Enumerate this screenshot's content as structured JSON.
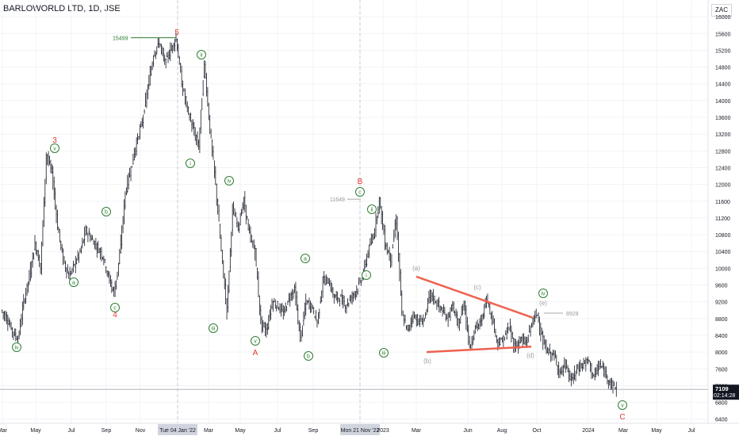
{
  "header": {
    "symbol": "BARLOWORLD LTD, 1D, JSE",
    "currency": "ZAC"
  },
  "colors": {
    "candle": "#131722",
    "wave_red": "#e53935",
    "wave_green": "#2e7d32",
    "abc_grey": "#9e9e9e",
    "triangle_line": "#f0614f",
    "axis_text": "#131722",
    "grid": "#f2f3f5"
  },
  "price_axis": {
    "ticks": [
      "16000",
      "15600",
      "15200",
      "14800",
      "14400",
      "14000",
      "13600",
      "13200",
      "12800",
      "12400",
      "12000",
      "11600",
      "11200",
      "10800",
      "10400",
      "10000",
      "9600",
      "9200",
      "8800",
      "8400",
      "8000",
      "7600",
      "7200",
      "6800",
      "6400"
    ],
    "last_price": "7109",
    "countdown": "02:14:28"
  },
  "time_axis": {
    "ticks": [
      "Mar",
      "May",
      "Jul",
      "Sep",
      "Nov",
      "Tue 04 Jan '22",
      "Mar",
      "May",
      "Jul",
      "Sep",
      "Mon 21 Nov '22",
      "2023",
      "Mar",
      "Jun",
      "Aug",
      "Oct",
      "2024",
      "Mar",
      "May",
      "Jul"
    ]
  },
  "chart_data": {
    "type": "line",
    "title": "BARLOWORLD LTD, 1D, JSE",
    "ylim": [
      6300,
      16400
    ],
    "xlabel": "",
    "ylabel": "",
    "grid": true,
    "price_labels": [
      "15499",
      "11649",
      "8928"
    ],
    "series": [
      {
        "values": [
          9000,
          8800,
          8500,
          8300,
          9200,
          9800,
          10600,
          10000,
          12700,
          12300,
          11000,
          10200,
          9800,
          10100,
          10400,
          10900,
          10700,
          10500,
          10300,
          9800,
          9400,
          10300,
          11800,
          12400,
          13000,
          13500,
          14300,
          15100,
          15400,
          14900,
          15200,
          15499,
          14400,
          13800,
          13300,
          12900,
          14900,
          13300,
          12000,
          10400,
          9000,
          11400,
          11000,
          11600,
          10800,
          10400,
          8700,
          8500,
          9200,
          9100,
          8900,
          9300,
          9500,
          8300,
          9200,
          9100,
          8700,
          9700,
          9700,
          9300,
          9300,
          9100,
          9300,
          9500,
          9800,
          10400,
          10800,
          11649,
          10600,
          10200,
          11200,
          8900,
          8500,
          8900,
          8700,
          8800,
          9400,
          9200,
          9000,
          8800,
          9100,
          8600,
          9200,
          8100,
          8600,
          8700,
          9300,
          8800,
          8200,
          8300,
          8600,
          8100,
          8300,
          8200,
          8700,
          8928,
          8200,
          8000,
          7900,
          7500,
          7700,
          7300,
          7600,
          7700,
          7800,
          7400,
          7700,
          7500,
          7250,
          7109
        ]
      }
    ],
    "wave_labels": {
      "red": [
        "3",
        "4",
        "5",
        "A",
        "B",
        "C"
      ],
      "green": [
        "v",
        "iv",
        "a",
        "b",
        "c",
        "ii",
        "i",
        "iii",
        "iv",
        "v",
        "a",
        "b",
        "c",
        "ii",
        "i",
        "iii",
        "iv",
        "v"
      ],
      "grey": [
        "(a)",
        "(b)",
        "(c)",
        "(d)",
        "(e)"
      ]
    }
  }
}
